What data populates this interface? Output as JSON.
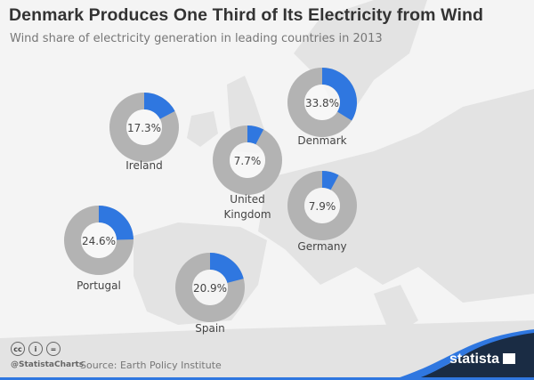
{
  "chart_data": {
    "type": "pie",
    "title": "Denmark Produces One Third of Its Electricity from Wind",
    "subtitle": "Wind share of electricity generation in leading countries in 2013",
    "unit": "%",
    "categories": [
      "Ireland",
      "Denmark",
      "United Kingdom",
      "Germany",
      "Portugal",
      "Spain"
    ],
    "values": [
      17.3,
      33.8,
      7.7,
      7.9,
      24.6,
      20.9
    ],
    "value_labels": [
      "17.3%",
      "33.8%",
      "7.7%",
      "7.9%",
      "24.6%",
      "20.9%"
    ],
    "colors": {
      "wind": "#2f77e0",
      "rest": "#b3b3b3"
    }
  },
  "footer": {
    "handle": "@StatistaCharts",
    "source": "Source: Earth Policy Institute",
    "logo": "statista",
    "cc_icons": [
      "cc",
      "by",
      "nd"
    ]
  }
}
